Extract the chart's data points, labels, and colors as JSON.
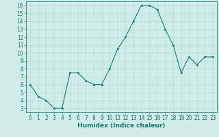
{
  "x": [
    0,
    1,
    2,
    3,
    4,
    5,
    6,
    7,
    8,
    9,
    10,
    11,
    12,
    13,
    14,
    15,
    16,
    17,
    18,
    19,
    20,
    21,
    22,
    23
  ],
  "y": [
    6.0,
    4.5,
    4.0,
    3.0,
    3.0,
    7.5,
    7.5,
    6.5,
    6.0,
    6.0,
    8.0,
    10.5,
    12.0,
    14.0,
    16.0,
    16.0,
    15.5,
    13.0,
    11.0,
    7.5,
    9.5,
    8.5,
    9.5,
    9.5
  ],
  "xlabel": "Humidex (Indice chaleur)",
  "xlim": [
    -0.5,
    23.5
  ],
  "ylim": [
    2.5,
    16.5
  ],
  "yticks": [
    3,
    4,
    5,
    6,
    7,
    8,
    9,
    10,
    11,
    12,
    13,
    14,
    15,
    16
  ],
  "xtick_labels": [
    "0",
    "1",
    "2",
    "3",
    "4",
    "5",
    "6",
    "7",
    "8",
    "9",
    "10",
    "11",
    "12",
    "13",
    "14",
    "15",
    "16",
    "17",
    "18",
    "19",
    "20",
    "21",
    "22",
    "23"
  ],
  "line_color": "#1a7a6e",
  "marker_color": "#1a7a6e",
  "bg_color": "#d0ece9",
  "grid_color": "#afd8d4",
  "axes_color": "#1a7a6e",
  "font_size_ticks": 5.5,
  "font_size_label": 6.5
}
